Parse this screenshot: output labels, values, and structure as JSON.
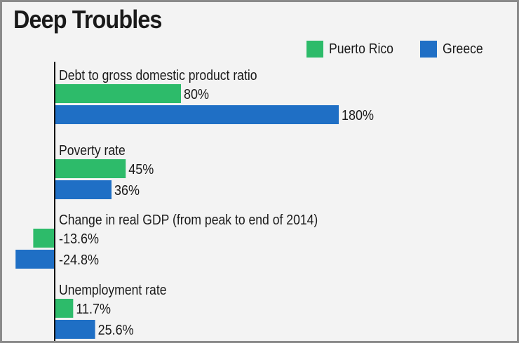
{
  "colors": {
    "puerto_rico": "#2dbb6a",
    "greece": "#1f6fc5",
    "axis": "#111111"
  },
  "chart_data": {
    "type": "bar",
    "orientation": "horizontal",
    "title": "Deep Troubles",
    "legend_position": "top-right",
    "series": [
      {
        "name": "Puerto Rico",
        "color": "#2dbb6a"
      },
      {
        "name": "Greece",
        "color": "#1f6fc5"
      }
    ],
    "groups": [
      {
        "label": "Debt to gross domestic product ratio",
        "values": [
          80,
          180
        ],
        "value_labels": [
          "80%",
          "180%"
        ]
      },
      {
        "label": "Poverty rate",
        "values": [
          45,
          36
        ],
        "value_labels": [
          "45%",
          "36%"
        ]
      },
      {
        "label": "Change in real GDP (from peak to end of 2014)",
        "values": [
          -13.6,
          -24.8
        ],
        "value_labels": [
          "-13.6%",
          "-24.8%"
        ]
      },
      {
        "label": "Unemployment rate",
        "values": [
          11.7,
          25.6
        ],
        "value_labels": [
          "11.7%",
          "25.6%"
        ]
      }
    ]
  }
}
